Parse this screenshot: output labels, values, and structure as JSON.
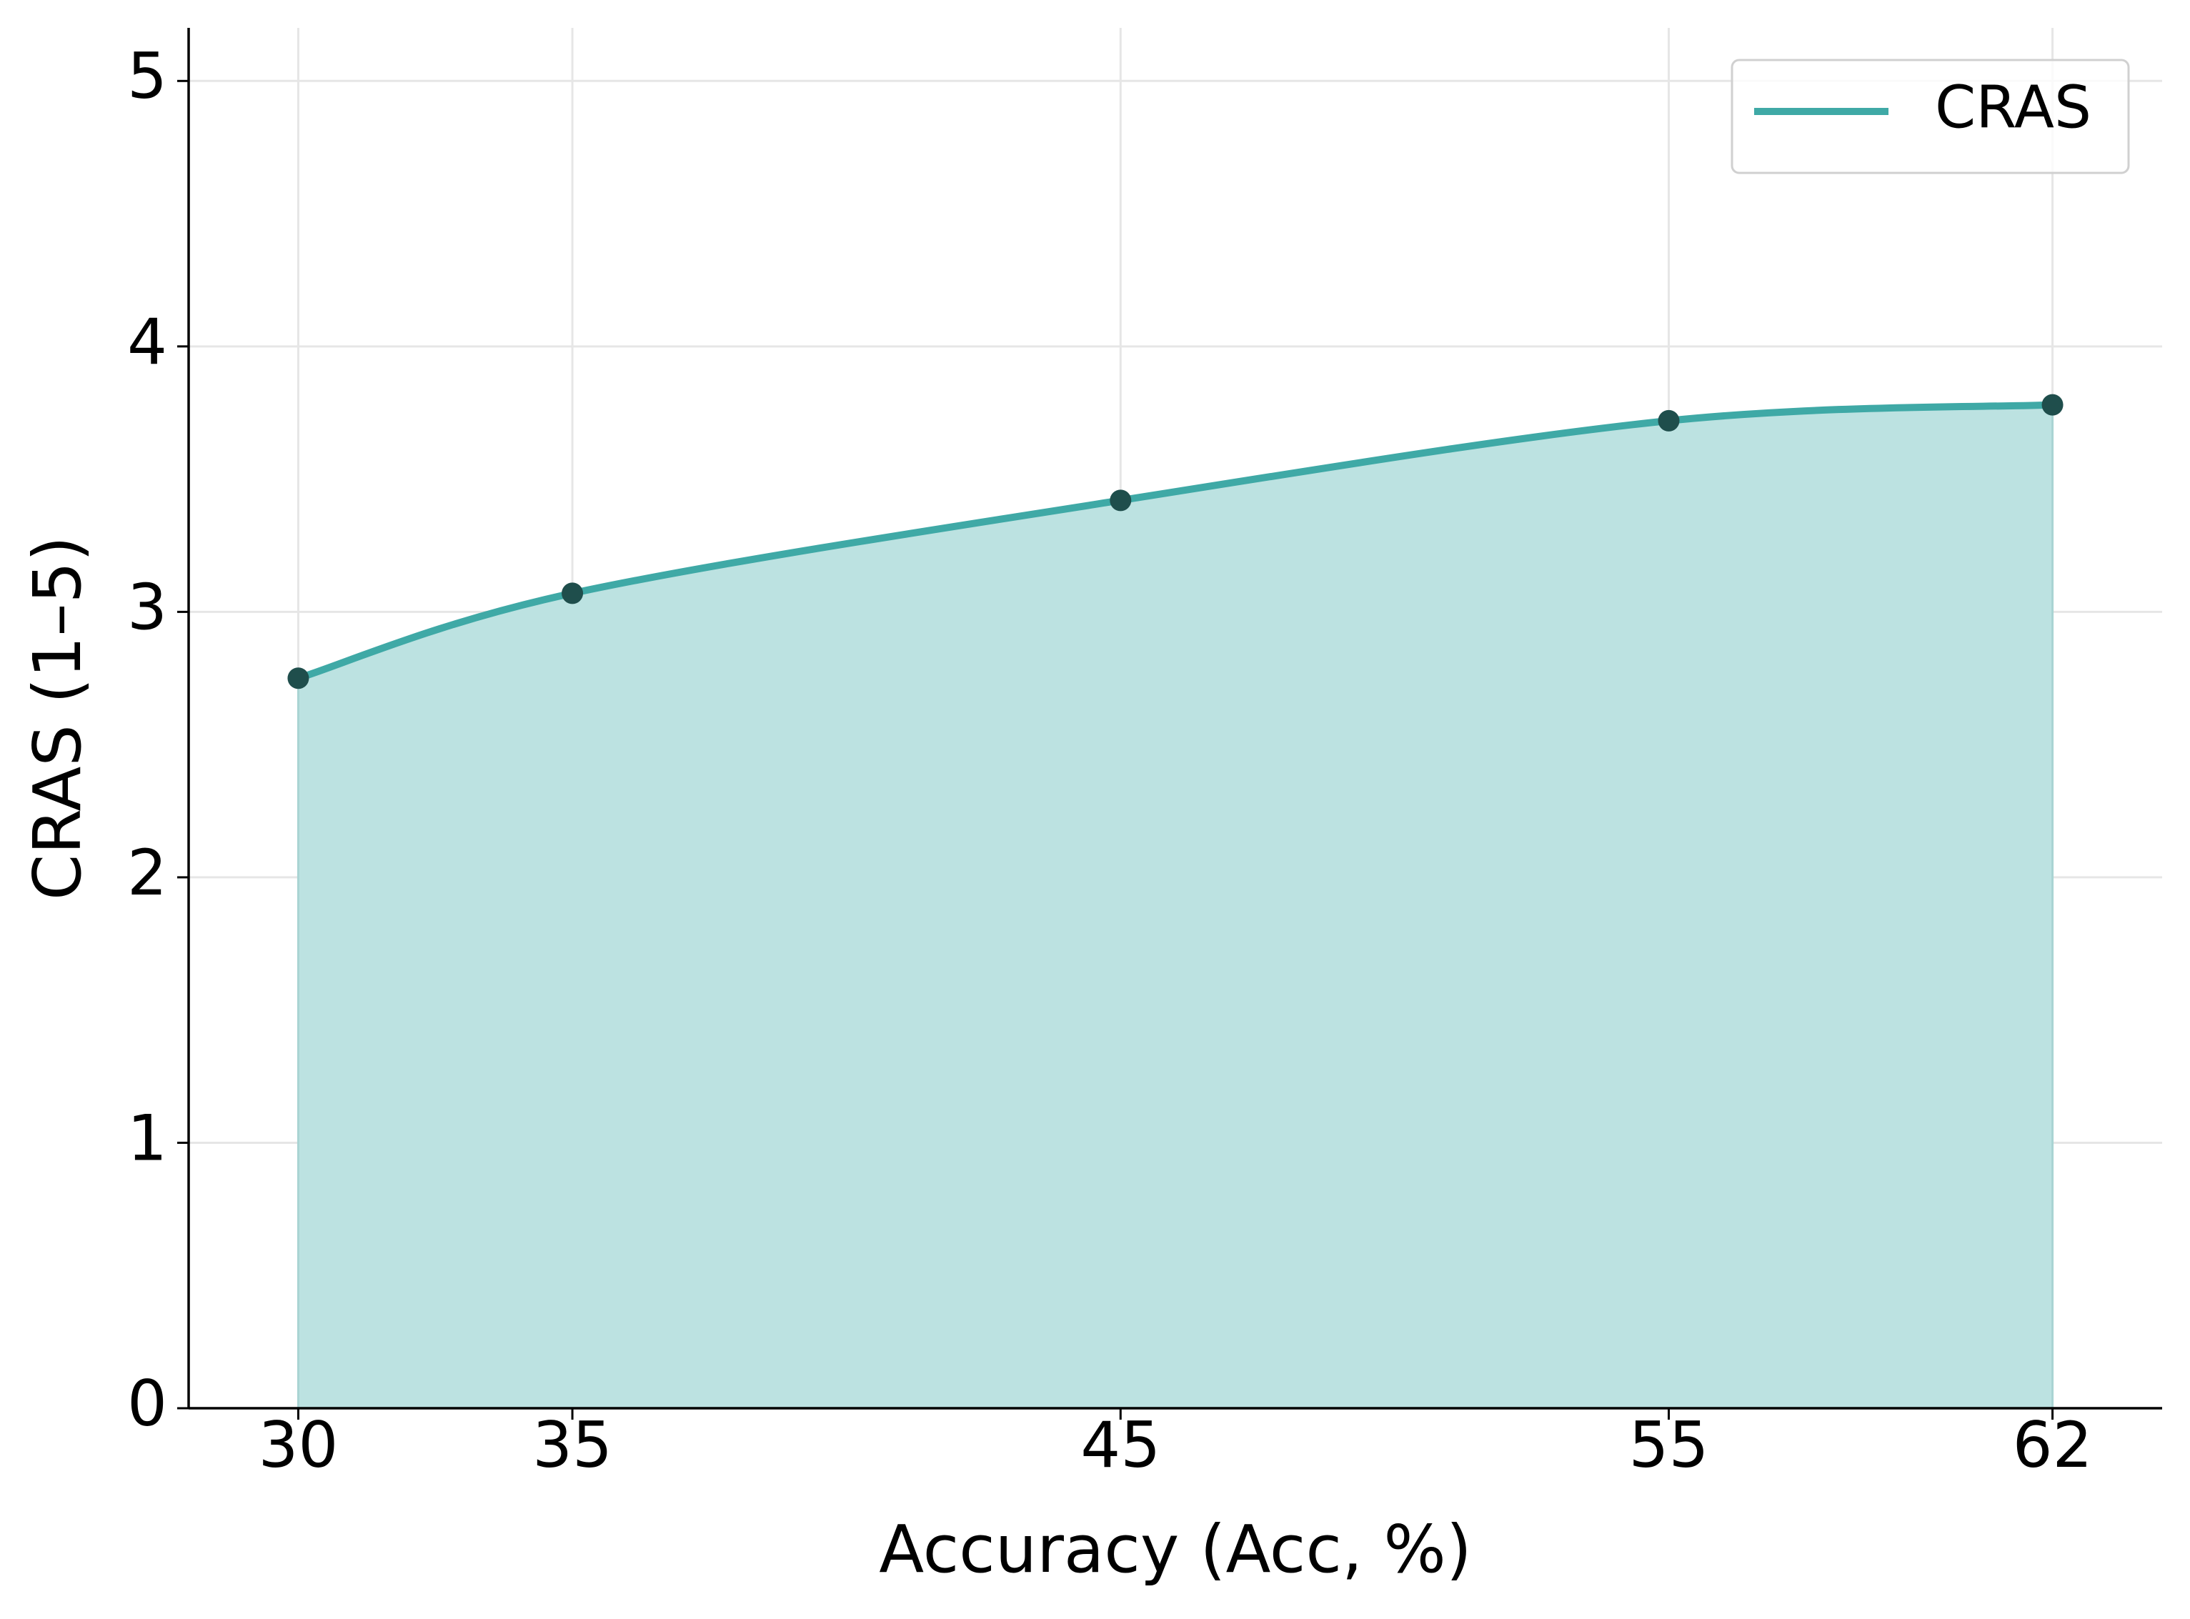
{
  "chart_data": {
    "type": "line",
    "x_label": "Accuracy (Acc, %)",
    "y_label": "CRAS (1–5)",
    "x": [
      30,
      35,
      45,
      55,
      62
    ],
    "series": [
      {
        "name": "CRAS",
        "color": "#3fa9a6",
        "fill": "#bce2e1",
        "marker_color": "#1f4e4c",
        "values": [
          2.75,
          3.07,
          3.42,
          3.72,
          3.78
        ]
      }
    ],
    "xlim": [
      28,
      64
    ],
    "xticks": [
      30,
      35,
      45,
      55,
      62
    ],
    "ylim": [
      0,
      5.2
    ],
    "yticks": [
      0,
      1,
      2,
      3,
      4,
      5
    ],
    "grid": true,
    "legend": "upper right"
  }
}
